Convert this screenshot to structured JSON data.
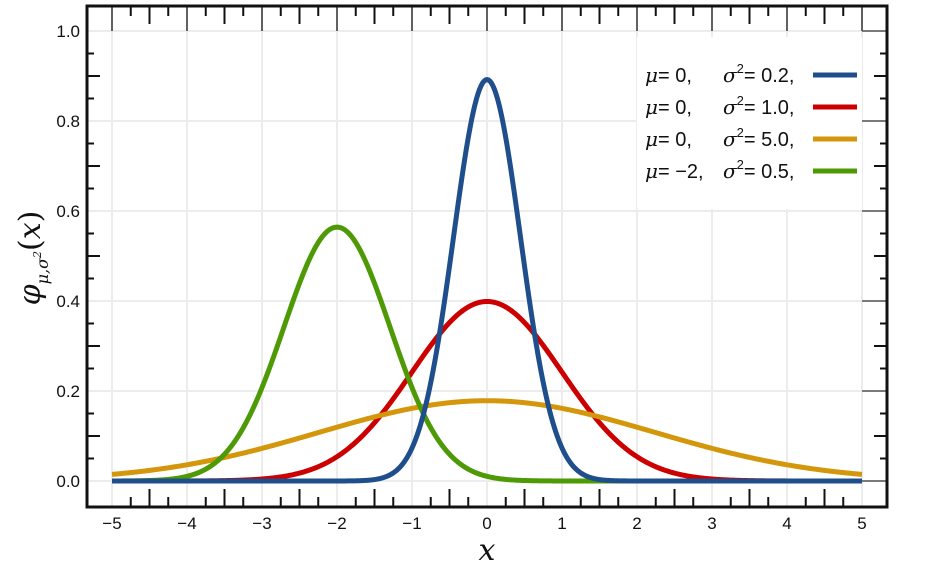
{
  "chart_data": {
    "type": "line",
    "title": "",
    "xlabel": "x",
    "ylabel": "φ_{μ,σ²}(x)",
    "xlim": [
      -5,
      5
    ],
    "ylim": [
      0,
      1.0
    ],
    "x_ticks": [
      -5,
      -4,
      -3,
      -2,
      -1,
      0,
      1,
      2,
      3,
      4,
      5
    ],
    "x_tick_labels": [
      "−5",
      "−4",
      "−3",
      "−2",
      "−1",
      "0",
      "1",
      "2",
      "3",
      "4",
      "5"
    ],
    "y_ticks": [
      0.0,
      0.2,
      0.4,
      0.6,
      0.8,
      1.0
    ],
    "y_tick_labels": [
      "0.0",
      "0.2",
      "0.4",
      "0.6",
      "0.8",
      "1.0"
    ],
    "grid": true,
    "legend_position": "upper right",
    "series": [
      {
        "name": "μ=0, σ²=0.2",
        "mu_label": "μ",
        "mu": 0,
        "mu_text": "= 0,",
        "sigma_label": "σ",
        "var": 0.2,
        "var_text": "= 0.2,",
        "color": "#1f4e8c",
        "peak": 0.892
      },
      {
        "name": "μ=0, σ²=1.0",
        "mu_label": "μ",
        "mu": 0,
        "mu_text": "= 0,",
        "sigma_label": "σ",
        "var": 1.0,
        "var_text": "= 1.0,",
        "color": "#cc0000",
        "peak": 0.399
      },
      {
        "name": "μ=0, σ²=5.0",
        "mu_label": "μ",
        "mu": 0,
        "mu_text": "= 0,",
        "sigma_label": "σ",
        "var": 5.0,
        "var_text": "= 5.0,",
        "color": "#d4960a",
        "peak": 0.178
      },
      {
        "name": "μ=−2, σ²=0.5",
        "mu_label": "μ",
        "mu": -2,
        "mu_text": "= −2,",
        "sigma_label": "σ",
        "var": 0.5,
        "var_text": "= 0.5,",
        "color": "#4e9a06",
        "peak": 0.564
      }
    ],
    "draw_order": [
      1,
      2,
      3,
      0
    ]
  }
}
